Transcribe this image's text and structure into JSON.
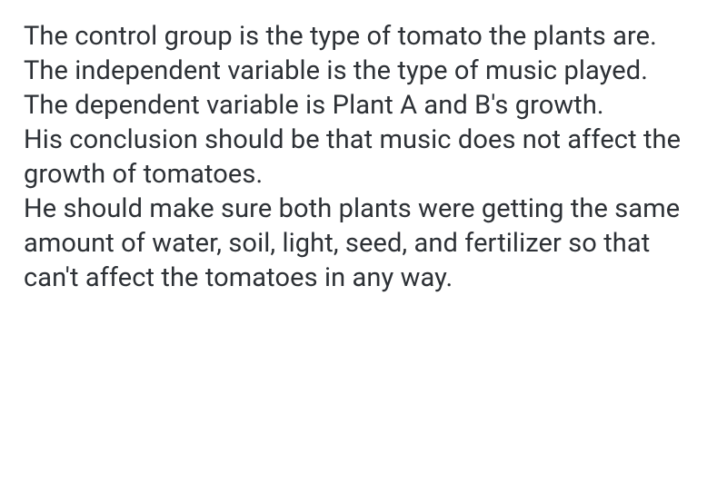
{
  "text_color": "#2d3136",
  "background_color": "#ffffff",
  "font_size": 29,
  "line_height": 1.31,
  "font_family": "-apple-system, BlinkMacSystemFont, 'Segoe UI', Roboto, 'Helvetica Neue', Arial, sans-serif",
  "paragraphs": {
    "p1": "The control group is the type of tomato the plants are.",
    "p2": "The independent variable is the type of music played.",
    "p3": "The dependent variable is Plant A and B's growth.",
    "p4": "His conclusion should be that music does not affect the growth of tomatoes.",
    "p5": "He should make sure both plants were getting the same amount of water, soil, light, seed, and fertilizer so that can't affect the tomatoes in any way."
  }
}
